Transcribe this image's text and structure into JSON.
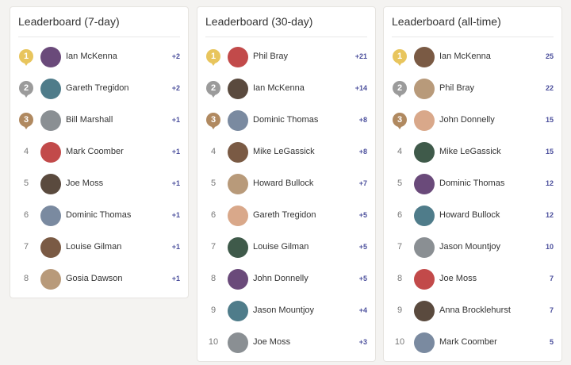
{
  "leaderboards": [
    {
      "title": "Leaderboard (7-day)",
      "rows": [
        {
          "rank": 1,
          "name": "Ian McKenna",
          "score": "+2"
        },
        {
          "rank": 2,
          "name": "Gareth Tregidon",
          "score": "+2"
        },
        {
          "rank": 3,
          "name": "Bill Marshall",
          "score": "+1"
        },
        {
          "rank": 4,
          "name": "Mark Coomber",
          "score": "+1"
        },
        {
          "rank": 5,
          "name": "Joe Moss",
          "score": "+1"
        },
        {
          "rank": 6,
          "name": "Dominic Thomas",
          "score": "+1"
        },
        {
          "rank": 7,
          "name": "Louise Gilman",
          "score": "+1"
        },
        {
          "rank": 8,
          "name": "Gosia Dawson",
          "score": "+1"
        }
      ]
    },
    {
      "title": "Leaderboard (30-day)",
      "rows": [
        {
          "rank": 1,
          "name": "Phil Bray",
          "score": "+21"
        },
        {
          "rank": 2,
          "name": "Ian McKenna",
          "score": "+14"
        },
        {
          "rank": 3,
          "name": "Dominic Thomas",
          "score": "+8"
        },
        {
          "rank": 4,
          "name": "Mike LeGassick",
          "score": "+8"
        },
        {
          "rank": 5,
          "name": "Howard Bullock",
          "score": "+7"
        },
        {
          "rank": 6,
          "name": "Gareth Tregidon",
          "score": "+5"
        },
        {
          "rank": 7,
          "name": "Louise Gilman",
          "score": "+5"
        },
        {
          "rank": 8,
          "name": "John Donnelly",
          "score": "+5"
        },
        {
          "rank": 9,
          "name": "Jason Mountjoy",
          "score": "+4"
        },
        {
          "rank": 10,
          "name": "Joe Moss",
          "score": "+3"
        }
      ]
    },
    {
      "title": "Leaderboard (all-time)",
      "rows": [
        {
          "rank": 1,
          "name": "Ian McKenna",
          "score": "25"
        },
        {
          "rank": 2,
          "name": "Phil Bray",
          "score": "22"
        },
        {
          "rank": 3,
          "name": "John Donnelly",
          "score": "15"
        },
        {
          "rank": 4,
          "name": "Mike LeGassick",
          "score": "15"
        },
        {
          "rank": 5,
          "name": "Dominic Thomas",
          "score": "12"
        },
        {
          "rank": 6,
          "name": "Howard Bullock",
          "score": "12"
        },
        {
          "rank": 7,
          "name": "Jason Mountjoy",
          "score": "10"
        },
        {
          "rank": 8,
          "name": "Joe Moss",
          "score": "7"
        },
        {
          "rank": 9,
          "name": "Anna Brocklehurst",
          "score": "7"
        },
        {
          "rank": 10,
          "name": "Mark Coomber",
          "score": "5"
        }
      ]
    }
  ]
}
